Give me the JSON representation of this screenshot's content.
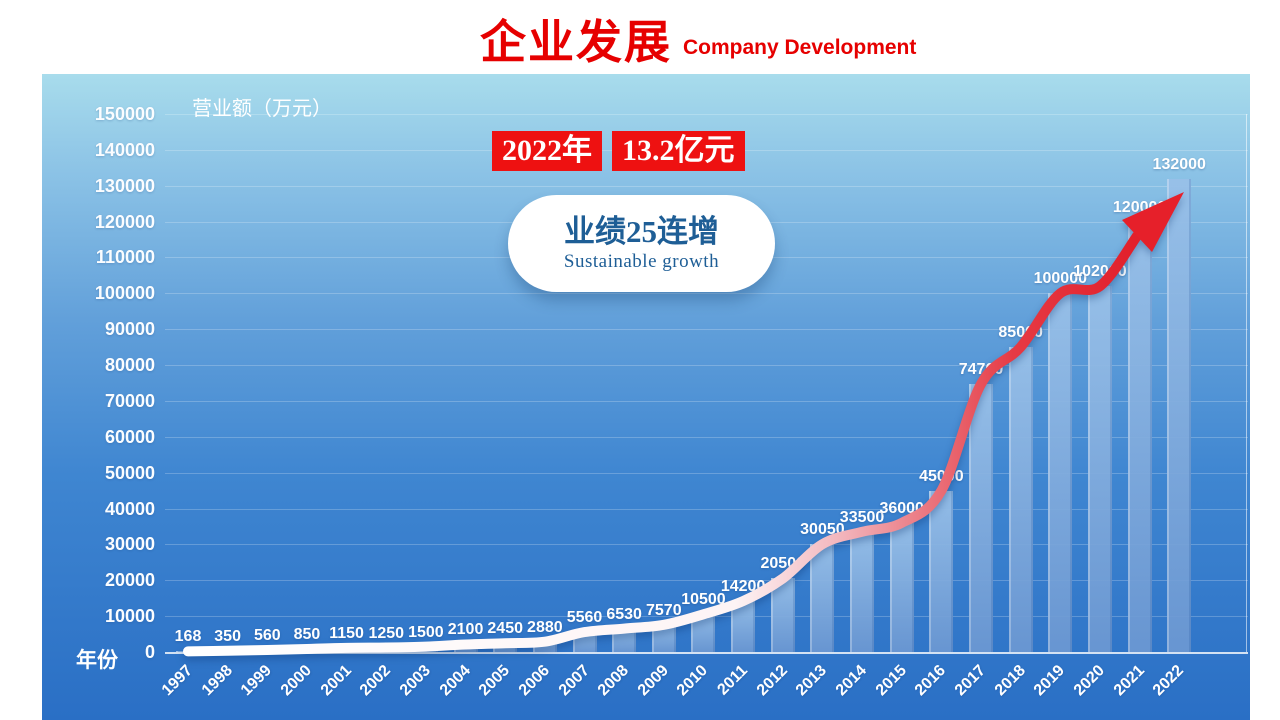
{
  "header": {
    "title": "企业发展",
    "subtitle": "Company Development"
  },
  "banner": {
    "year": "2022年",
    "amount": "13.2亿元"
  },
  "callout": {
    "title": "业绩25连增",
    "subtitle": "Sustainable growth"
  },
  "chart_data": {
    "type": "bar",
    "line_overlay": true,
    "title": "",
    "xlabel": "年份",
    "ylabel": "营业额（万元）",
    "ylim": [
      0,
      150000
    ],
    "ytick_step": 10000,
    "grid": "horizontal",
    "legend": "none",
    "categories": [
      "1997",
      "1998",
      "1999",
      "2000",
      "2001",
      "2002",
      "2003",
      "2004",
      "2005",
      "2006",
      "2007",
      "2008",
      "2009",
      "2010",
      "2011",
      "2012",
      "2013",
      "2014",
      "2015",
      "2016",
      "2017",
      "2018",
      "2019",
      "2020",
      "2021",
      "2022"
    ],
    "values": [
      168,
      350,
      560,
      850,
      1150,
      1250,
      1500,
      2100,
      2450,
      2880,
      5560,
      6530,
      7570,
      10500,
      14200,
      20500,
      30050,
      33500,
      36000,
      45000,
      74700,
      85000,
      100000,
      102000,
      120000,
      132000
    ]
  },
  "colors": {
    "title_red": "#e60000",
    "banner_red": "#ee1111",
    "arrow_red": "#e6202a",
    "callout_blue": "#1e5e96",
    "panel_gradient_top": "#a8dcec",
    "panel_gradient_bottom": "#2a6fc5",
    "bar_blue": "#6c98d2",
    "tick_text": "#ffffff",
    "line_gradient": [
      [
        "0%",
        "#ffffff"
      ],
      [
        "55%",
        "#fdf4f5"
      ],
      [
        "66%",
        "#f2b3ba"
      ],
      [
        "75%",
        "#ea727b"
      ],
      [
        "83%",
        "#e63a44"
      ],
      [
        "100%",
        "#e01622"
      ]
    ]
  }
}
